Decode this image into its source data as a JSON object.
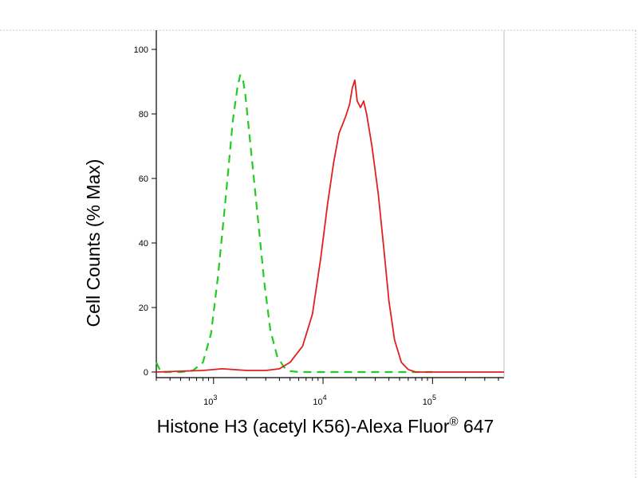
{
  "chart_data": {
    "type": "line",
    "xlabel": "Histone H3 (acetyl K56)-Alexa Fluor",
    "xlabel_superscript": "®",
    "xlabel_suffix": " 647",
    "ylabel": "Cell Counts (% Max)",
    "x_scale": "log",
    "xlim": [
      300,
      450000
    ],
    "ylim": [
      0,
      100
    ],
    "y_ticks": [
      0,
      20,
      40,
      60,
      80,
      100
    ],
    "x_ticks": [
      {
        "value": 1000,
        "base": "10",
        "exp": "3"
      },
      {
        "value": 10000,
        "base": "10",
        "exp": "4"
      },
      {
        "value": 100000,
        "base": "10",
        "exp": "5"
      }
    ],
    "grid": false,
    "series": [
      {
        "color": "#22cc22",
        "dash": "dashed",
        "points": [
          [
            300,
            3
          ],
          [
            330,
            0
          ],
          [
            500,
            0
          ],
          [
            650,
            0.5
          ],
          [
            800,
            3
          ],
          [
            950,
            12
          ],
          [
            1100,
            30
          ],
          [
            1300,
            55
          ],
          [
            1500,
            78
          ],
          [
            1650,
            88
          ],
          [
            1750,
            92
          ],
          [
            1850,
            91
          ],
          [
            1950,
            86
          ],
          [
            2150,
            72
          ],
          [
            2500,
            50
          ],
          [
            2900,
            28
          ],
          [
            3300,
            13
          ],
          [
            3800,
            5
          ],
          [
            4400,
            1.5
          ],
          [
            5000,
            0.3
          ],
          [
            6000,
            0
          ],
          [
            100000,
            0
          ]
        ]
      },
      {
        "color": "#e02020",
        "dash": "solid",
        "points": [
          [
            300,
            0
          ],
          [
            800,
            0.5
          ],
          [
            1200,
            1
          ],
          [
            2000,
            0.5
          ],
          [
            3000,
            0.5
          ],
          [
            4000,
            1
          ],
          [
            5000,
            3
          ],
          [
            6500,
            8
          ],
          [
            8000,
            18
          ],
          [
            9500,
            35
          ],
          [
            11000,
            52
          ],
          [
            12500,
            65
          ],
          [
            14000,
            74
          ],
          [
            16000,
            79
          ],
          [
            17500,
            83
          ],
          [
            18500,
            88
          ],
          [
            19500,
            90.5
          ],
          [
            20500,
            84
          ],
          [
            22000,
            82
          ],
          [
            23500,
            84
          ],
          [
            25000,
            80
          ],
          [
            28000,
            70
          ],
          [
            32000,
            55
          ],
          [
            36000,
            38
          ],
          [
            40000,
            22
          ],
          [
            45000,
            10
          ],
          [
            52000,
            3
          ],
          [
            60000,
            0.8
          ],
          [
            70000,
            0
          ],
          [
            450000,
            0
          ]
        ]
      }
    ]
  }
}
